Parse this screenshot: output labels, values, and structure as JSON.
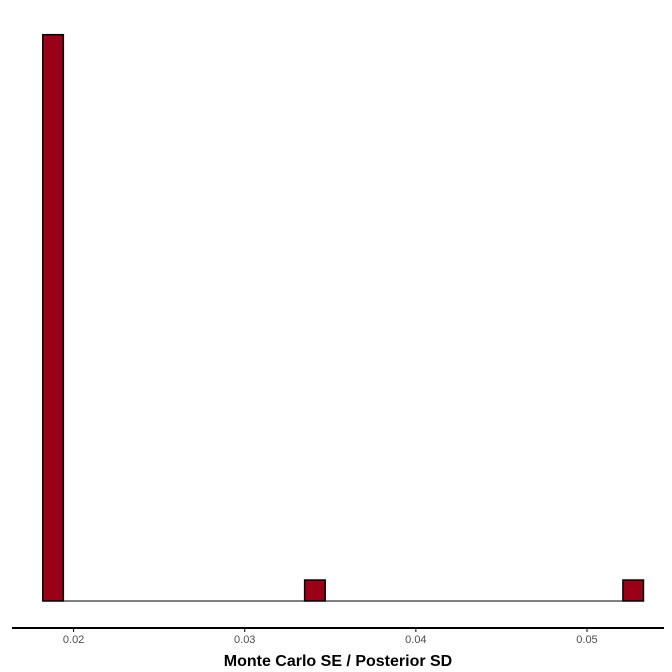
{
  "chart_data": {
    "type": "bar",
    "subtype": "histogram",
    "xlabel": "Monte Carlo SE / Posterior SD",
    "ylabel": "",
    "title": "",
    "xlim": [
      0.0164,
      0.0545
    ],
    "ylim": [
      0,
      27.7
    ],
    "x_ticks": [
      "0.02",
      "0.03",
      "0.04",
      "0.05"
    ],
    "x_tick_values": [
      0.02,
      0.03,
      0.04,
      0.05
    ],
    "y_axis_visible": false,
    "grid": false,
    "bin_width": 0.00118,
    "bins": [
      {
        "x0": 0.0182,
        "x1": 0.0194,
        "count": 27
      },
      {
        "x0": 0.0335,
        "x1": 0.0347,
        "count": 1
      },
      {
        "x0": 0.0521,
        "x1": 0.0533,
        "count": 1
      }
    ],
    "colors": {
      "fill": "#9a0018",
      "stroke": "#000000",
      "axis": "#000000",
      "tick_text": "#4d4d4d"
    }
  }
}
